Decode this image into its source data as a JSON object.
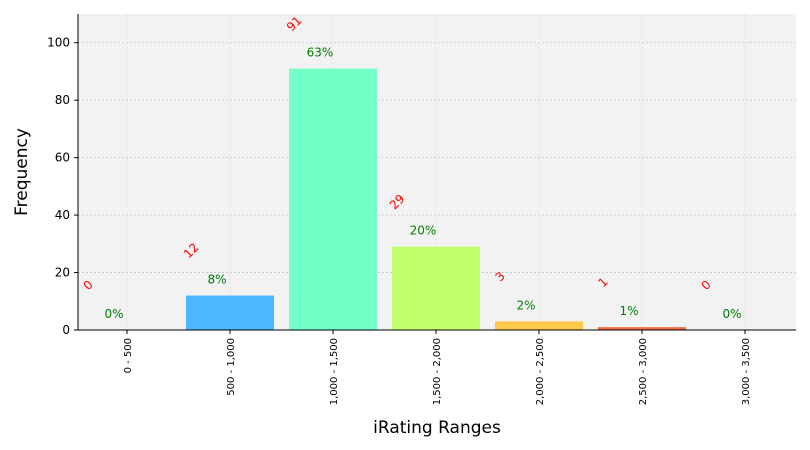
{
  "chart_data": {
    "type": "bar",
    "categories": [
      "0 - 500",
      "500 - 1,000",
      "1,000 - 1,500",
      "1,500 - 2,000",
      "2,000 - 2,500",
      "2,500 - 3,000",
      "3,000 - 3,500"
    ],
    "values": [
      0,
      12,
      91,
      29,
      3,
      1,
      0
    ],
    "count_labels": [
      "0",
      "12",
      "91",
      "29",
      "3",
      "1",
      "0"
    ],
    "percent_labels": [
      "0%",
      "8%",
      "63%",
      "20%",
      "2%",
      "1%",
      "0%"
    ],
    "bar_colors": [
      "#4a7fff",
      "#4bb8ff",
      "#73ffc8",
      "#c3ff6c",
      "#ffc94b",
      "#f26a45",
      "#e53e2e"
    ],
    "xlabel": "iRating Ranges",
    "ylabel": "Frequency",
    "ylim": [
      0,
      110
    ],
    "yticks": [
      0,
      20,
      40,
      60,
      80,
      100
    ],
    "grid": true,
    "count_label_color": "#ff0000",
    "percent_label_color": "#008000",
    "plot_background": "#f2f2f2"
  }
}
